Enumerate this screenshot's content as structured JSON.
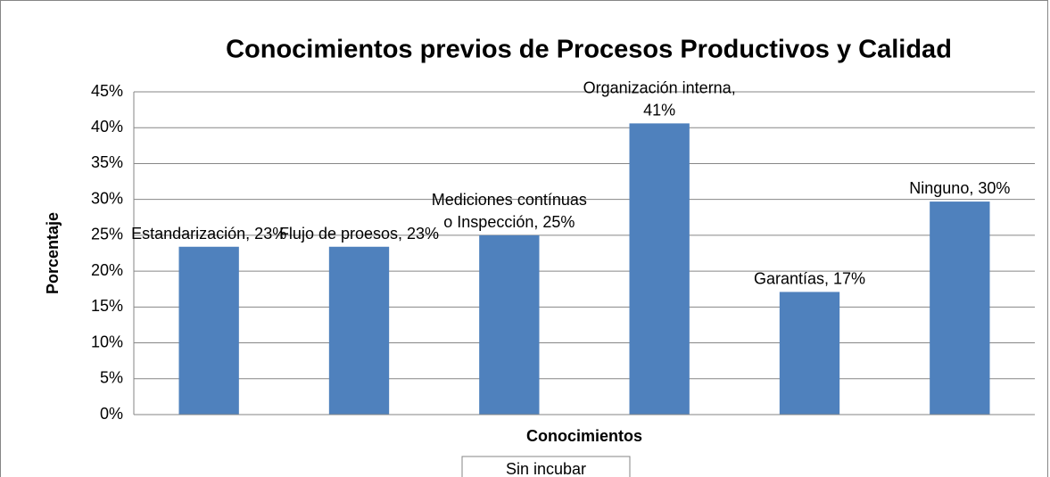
{
  "chart_data": {
    "type": "bar",
    "title": "Conocimientos previos de Procesos Productivos y Calidad",
    "x_label": "Conocimientos",
    "y_label": "Porcentaje",
    "series": [
      {
        "name": "Sin incubar",
        "color": "#4f81bd",
        "values": [
          23.4,
          23.4,
          25,
          40.6,
          17.1,
          29.7
        ],
        "value_labels": [
          "Estandarización, 23%",
          "Flujo de proesos, 23%",
          "Mediciones contínuas o Inspección, 25%",
          "Organización interna, 41%",
          "Garantías, 17%",
          "Ninguno, 30%"
        ]
      }
    ],
    "ylim": [
      0,
      45
    ],
    "yticks": [
      {
        "value": 0,
        "label": "0%"
      },
      {
        "value": 5,
        "label": "5%"
      },
      {
        "value": 10,
        "label": "10%"
      },
      {
        "value": 15,
        "label": "15%"
      },
      {
        "value": 20,
        "label": "20%"
      },
      {
        "value": 25,
        "label": "25%"
      },
      {
        "value": 30,
        "label": "30%"
      },
      {
        "value": 35,
        "label": "35%"
      },
      {
        "value": 40,
        "label": "40%"
      },
      {
        "value": 45,
        "label": "45%"
      }
    ],
    "grid": true,
    "legend": "bottom"
  }
}
